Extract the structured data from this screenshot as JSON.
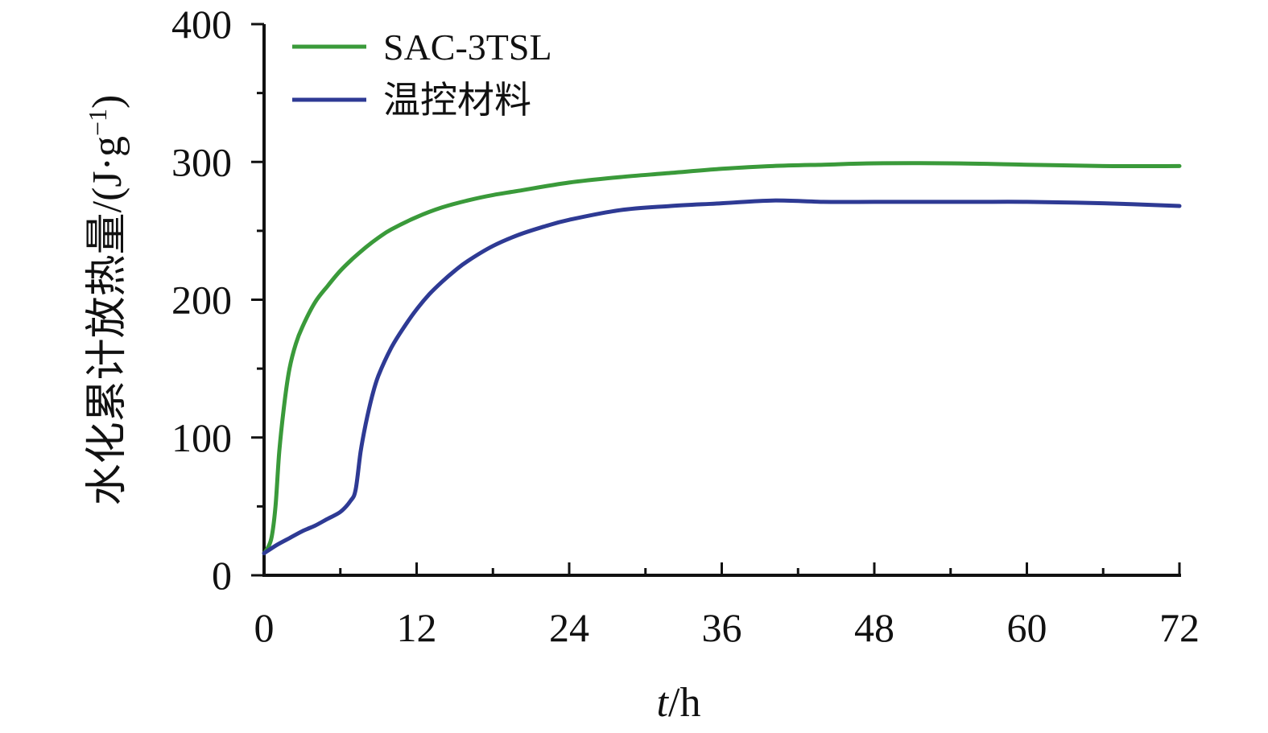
{
  "chart_data": {
    "type": "line",
    "xlabel": "t/h",
    "xlabel_italic_part": "t",
    "xlabel_rest": "/h",
    "ylabel_main": "水化累计放热量/(J·g",
    "ylabel_sup": "−1",
    "ylabel_close": ")",
    "xlim": [
      0,
      72
    ],
    "ylim": [
      0,
      400
    ],
    "xticks": [
      0,
      12,
      24,
      36,
      48,
      60,
      72
    ],
    "yticks": [
      0,
      100,
      200,
      300,
      400
    ],
    "x_minor_step": 6,
    "y_minor_step": 50,
    "grid": false,
    "legend_position": "top-left",
    "series": [
      {
        "name": "SAC-3TSL",
        "color": "#3a9a3a",
        "x": [
          0,
          0.3,
          0.6,
          0.9,
          1.2,
          1.6,
          2,
          2.5,
          3,
          4,
          5,
          6,
          7,
          8,
          9,
          10,
          12,
          14,
          16,
          18,
          20,
          24,
          28,
          32,
          36,
          40,
          44,
          48,
          54,
          60,
          66,
          72
        ],
        "y": [
          16,
          20,
          28,
          50,
          90,
          125,
          150,
          168,
          180,
          198,
          210,
          221,
          230,
          238,
          245,
          251,
          260,
          267,
          272,
          276,
          279,
          285,
          289,
          292,
          295,
          297,
          298,
          299,
          299,
          298,
          297,
          297
        ]
      },
      {
        "name": "温控材料",
        "color": "#2e3a94",
        "x": [
          0,
          1,
          2,
          3,
          4,
          5,
          6,
          6.8,
          7.2,
          7.6,
          8,
          8.5,
          9,
          10,
          11,
          12,
          13,
          14,
          15,
          16,
          18,
          20,
          22,
          24,
          28,
          32,
          36,
          40,
          44,
          48,
          52,
          56,
          60,
          66,
          72
        ],
        "y": [
          16,
          22,
          27,
          32,
          36,
          41,
          46,
          54,
          62,
          90,
          110,
          130,
          145,
          165,
          180,
          193,
          204,
          213,
          221,
          228,
          239,
          247,
          253,
          258,
          265,
          268,
          270,
          272,
          271,
          271,
          271,
          271,
          271,
          270,
          268
        ]
      }
    ]
  }
}
